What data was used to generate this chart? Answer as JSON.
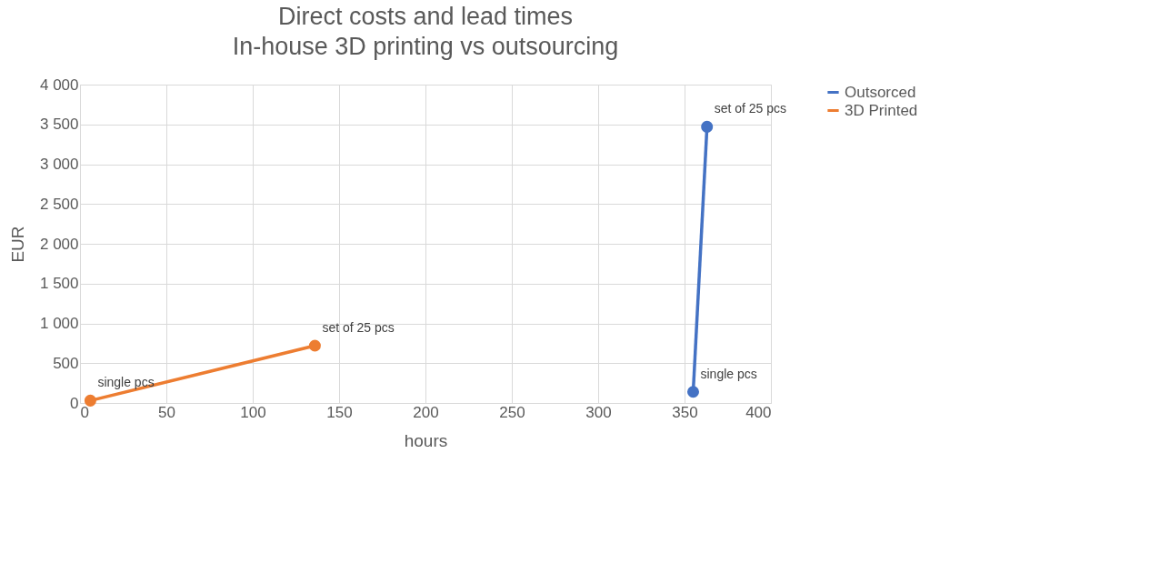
{
  "chart_data": {
    "type": "line",
    "title": "Direct costs and lead times",
    "subtitle": "In-house 3D printing vs outsourcing",
    "xlabel": "hours",
    "ylabel": "EUR",
    "series": [
      {
        "name": "Outsorced",
        "color": "#4472c4",
        "x": [
          355,
          363
        ],
        "values": [
          140,
          3470
        ]
      },
      {
        "name": "3D Printed",
        "color": "#ed7d31",
        "x": [
          6,
          136
        ],
        "values": [
          30,
          720
        ]
      }
    ],
    "xlim": [
      0,
      400
    ],
    "xticks": [
      0,
      50,
      100,
      150,
      200,
      250,
      300,
      350,
      400
    ],
    "ylim": [
      0,
      4000
    ],
    "yticks": [
      0,
      500,
      {
        "value": 1000,
        "label": "1 000"
      },
      {
        "value": 1500,
        "label": "1 500"
      },
      {
        "value": 2000,
        "label": "2 000"
      },
      {
        "value": 2500,
        "label": "2 500"
      },
      {
        "value": 3000,
        "label": "3 000"
      },
      {
        "value": 3500,
        "label": "3 500"
      },
      {
        "value": 4000,
        "label": "4 000"
      }
    ],
    "annotations": [
      {
        "text": "single pcs",
        "x": 6,
        "y": 30
      },
      {
        "text": "set of 25 pcs",
        "x": 136,
        "y": 720
      },
      {
        "text": "single pcs",
        "x": 355,
        "y": 140
      },
      {
        "text": "set of 25 pcs",
        "x": 363,
        "y": 3470
      }
    ],
    "grid": true,
    "legend": "right",
    "marker": "circle",
    "line_style": "solid"
  }
}
